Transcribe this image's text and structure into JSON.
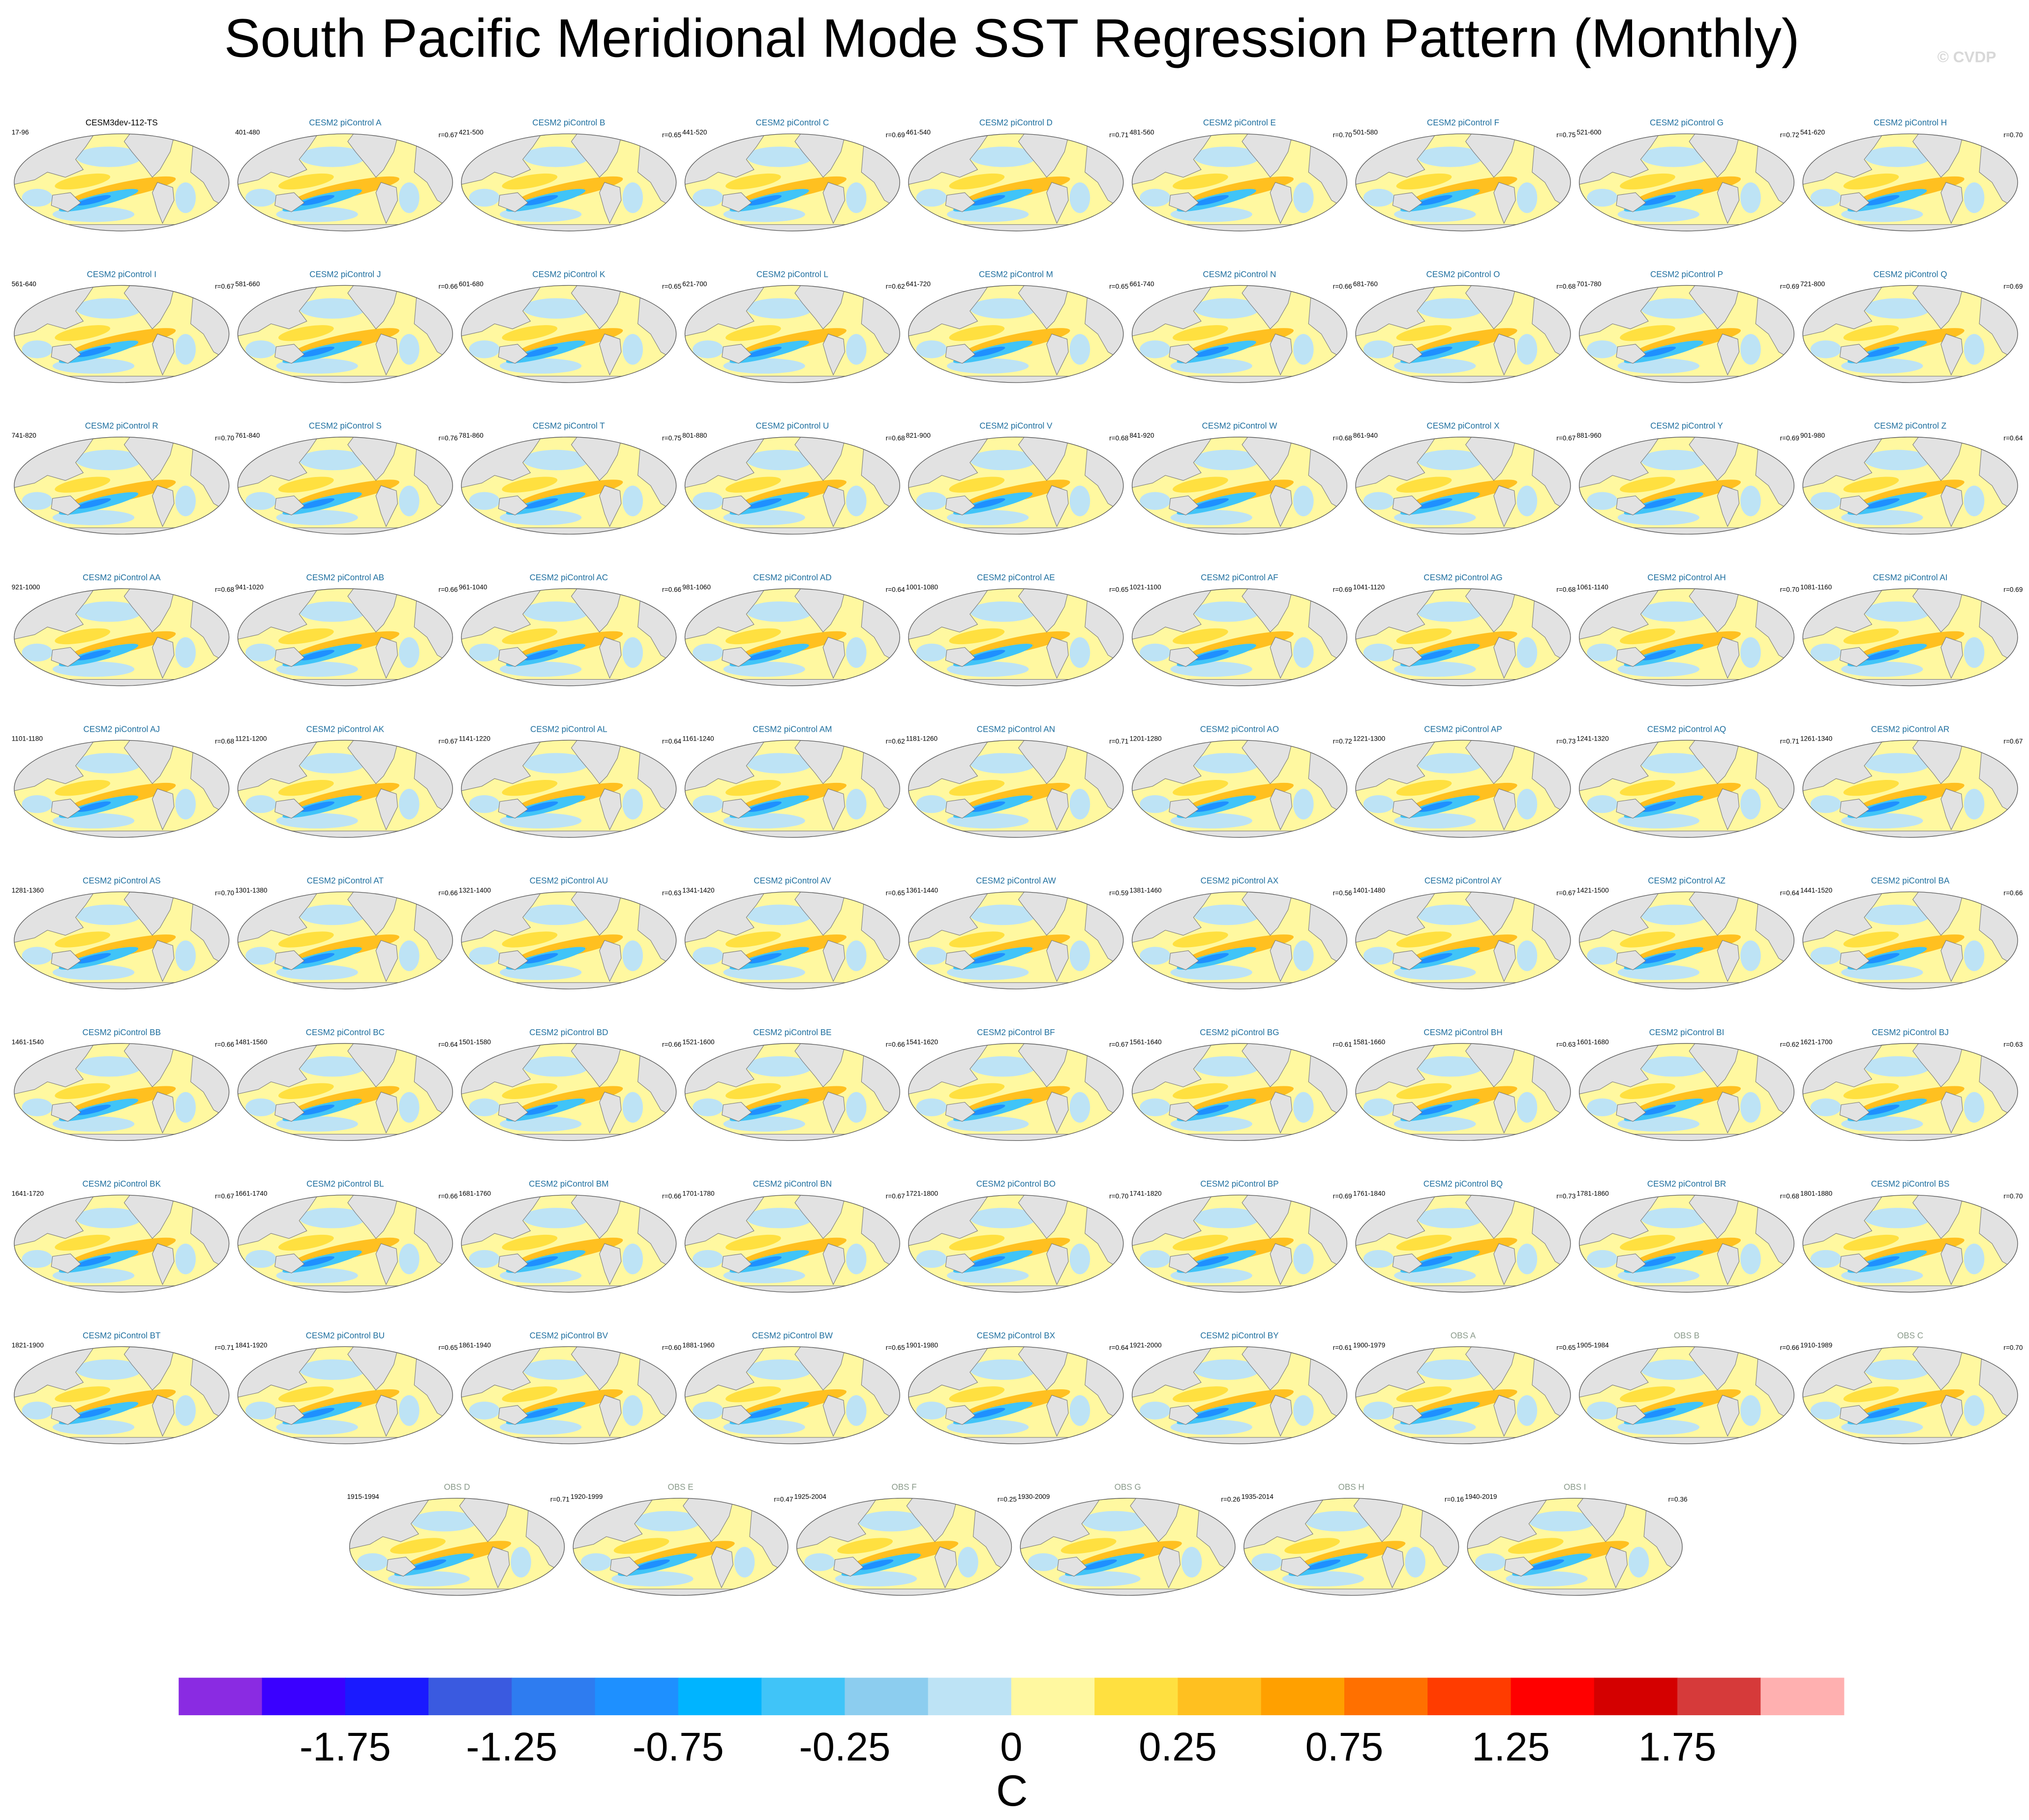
{
  "chart_data": {
    "type": "map",
    "title": "South Pacific Meridional Mode SST Regression Pattern (Monthly)",
    "watermark": "© CVDP",
    "panels": [
      {
        "title": "CESM3dev-112-TS",
        "period": "17-96",
        "group": "model"
      },
      {
        "title": "CESM2 piControl A",
        "period": "401-480",
        "r": "r=0.67",
        "group": "ensemble"
      },
      {
        "title": "CESM2 piControl B",
        "period": "421-500",
        "r": "r=0.65",
        "group": "ensemble"
      },
      {
        "title": "CESM2 piControl C",
        "period": "441-520",
        "r": "r=0.69",
        "group": "ensemble"
      },
      {
        "title": "CESM2 piControl D",
        "period": "461-540",
        "r": "r=0.71",
        "group": "ensemble"
      },
      {
        "title": "CESM2 piControl E",
        "period": "481-560",
        "r": "r=0.70",
        "group": "ensemble"
      },
      {
        "title": "CESM2 piControl F",
        "period": "501-580",
        "r": "r=0.75",
        "group": "ensemble"
      },
      {
        "title": "CESM2 piControl G",
        "period": "521-600",
        "r": "r=0.72",
        "group": "ensemble"
      },
      {
        "title": "CESM2 piControl H",
        "period": "541-620",
        "r": "r=0.70",
        "group": "ensemble"
      },
      {
        "title": "CESM2 piControl I",
        "period": "561-640",
        "r": "r=0.67",
        "group": "ensemble"
      },
      {
        "title": "CESM2 piControl J",
        "period": "581-660",
        "r": "r=0.66",
        "group": "ensemble"
      },
      {
        "title": "CESM2 piControl K",
        "period": "601-680",
        "r": "r=0.65",
        "group": "ensemble"
      },
      {
        "title": "CESM2 piControl L",
        "period": "621-700",
        "r": "r=0.62",
        "group": "ensemble"
      },
      {
        "title": "CESM2 piControl M",
        "period": "641-720",
        "r": "r=0.65",
        "group": "ensemble"
      },
      {
        "title": "CESM2 piControl N",
        "period": "661-740",
        "r": "r=0.66",
        "group": "ensemble"
      },
      {
        "title": "CESM2 piControl O",
        "period": "681-760",
        "r": "r=0.68",
        "group": "ensemble"
      },
      {
        "title": "CESM2 piControl P",
        "period": "701-780",
        "r": "r=0.69",
        "group": "ensemble"
      },
      {
        "title": "CESM2 piControl Q",
        "period": "721-800",
        "r": "r=0.69",
        "group": "ensemble"
      },
      {
        "title": "CESM2 piControl R",
        "period": "741-820",
        "r": "r=0.70",
        "group": "ensemble"
      },
      {
        "title": "CESM2 piControl S",
        "period": "761-840",
        "r": "r=0.76",
        "group": "ensemble"
      },
      {
        "title": "CESM2 piControl T",
        "period": "781-860",
        "r": "r=0.75",
        "group": "ensemble"
      },
      {
        "title": "CESM2 piControl U",
        "period": "801-880",
        "r": "r=0.68",
        "group": "ensemble"
      },
      {
        "title": "CESM2 piControl V",
        "period": "821-900",
        "r": "r=0.68",
        "group": "ensemble"
      },
      {
        "title": "CESM2 piControl W",
        "period": "841-920",
        "r": "r=0.68",
        "group": "ensemble"
      },
      {
        "title": "CESM2 piControl X",
        "period": "861-940",
        "r": "r=0.67",
        "group": "ensemble"
      },
      {
        "title": "CESM2 piControl Y",
        "period": "881-960",
        "r": "r=0.69",
        "group": "ensemble"
      },
      {
        "title": "CESM2 piControl Z",
        "period": "901-980",
        "r": "r=0.64",
        "group": "ensemble"
      },
      {
        "title": "CESM2 piControl AA",
        "period": "921-1000",
        "r": "r=0.68",
        "group": "ensemble"
      },
      {
        "title": "CESM2 piControl AB",
        "period": "941-1020",
        "r": "r=0.66",
        "group": "ensemble"
      },
      {
        "title": "CESM2 piControl AC",
        "period": "961-1040",
        "r": "r=0.66",
        "group": "ensemble"
      },
      {
        "title": "CESM2 piControl AD",
        "period": "981-1060",
        "r": "r=0.64",
        "group": "ensemble"
      },
      {
        "title": "CESM2 piControl AE",
        "period": "1001-1080",
        "r": "r=0.65",
        "group": "ensemble"
      },
      {
        "title": "CESM2 piControl AF",
        "period": "1021-1100",
        "r": "r=0.69",
        "group": "ensemble"
      },
      {
        "title": "CESM2 piControl AG",
        "period": "1041-1120",
        "r": "r=0.68",
        "group": "ensemble"
      },
      {
        "title": "CESM2 piControl AH",
        "period": "1061-1140",
        "r": "r=0.70",
        "group": "ensemble"
      },
      {
        "title": "CESM2 piControl AI",
        "period": "1081-1160",
        "r": "r=0.69",
        "group": "ensemble"
      },
      {
        "title": "CESM2 piControl AJ",
        "period": "1101-1180",
        "r": "r=0.68",
        "group": "ensemble"
      },
      {
        "title": "CESM2 piControl AK",
        "period": "1121-1200",
        "r": "r=0.67",
        "group": "ensemble"
      },
      {
        "title": "CESM2 piControl AL",
        "period": "1141-1220",
        "r": "r=0.64",
        "group": "ensemble"
      },
      {
        "title": "CESM2 piControl AM",
        "period": "1161-1240",
        "r": "r=0.62",
        "group": "ensemble"
      },
      {
        "title": "CESM2 piControl AN",
        "period": "1181-1260",
        "r": "r=0.71",
        "group": "ensemble"
      },
      {
        "title": "CESM2 piControl AO",
        "period": "1201-1280",
        "r": "r=0.72",
        "group": "ensemble"
      },
      {
        "title": "CESM2 piControl AP",
        "period": "1221-1300",
        "r": "r=0.73",
        "group": "ensemble"
      },
      {
        "title": "CESM2 piControl AQ",
        "period": "1241-1320",
        "r": "r=0.71",
        "group": "ensemble"
      },
      {
        "title": "CESM2 piControl AR",
        "period": "1261-1340",
        "r": "r=0.67",
        "group": "ensemble"
      },
      {
        "title": "CESM2 piControl AS",
        "period": "1281-1360",
        "r": "r=0.70",
        "group": "ensemble"
      },
      {
        "title": "CESM2 piControl AT",
        "period": "1301-1380",
        "r": "r=0.66",
        "group": "ensemble"
      },
      {
        "title": "CESM2 piControl AU",
        "period": "1321-1400",
        "r": "r=0.63",
        "group": "ensemble"
      },
      {
        "title": "CESM2 piControl AV",
        "period": "1341-1420",
        "r": "r=0.65",
        "group": "ensemble"
      },
      {
        "title": "CESM2 piControl AW",
        "period": "1361-1440",
        "r": "r=0.59",
        "group": "ensemble"
      },
      {
        "title": "CESM2 piControl AX",
        "period": "1381-1460",
        "r": "r=0.56",
        "group": "ensemble"
      },
      {
        "title": "CESM2 piControl AY",
        "period": "1401-1480",
        "r": "r=0.67",
        "group": "ensemble"
      },
      {
        "title": "CESM2 piControl AZ",
        "period": "1421-1500",
        "r": "r=0.64",
        "group": "ensemble"
      },
      {
        "title": "CESM2 piControl BA",
        "period": "1441-1520",
        "r": "r=0.66",
        "group": "ensemble"
      },
      {
        "title": "CESM2 piControl BB",
        "period": "1461-1540",
        "r": "r=0.66",
        "group": "ensemble"
      },
      {
        "title": "CESM2 piControl BC",
        "period": "1481-1560",
        "r": "r=0.64",
        "group": "ensemble"
      },
      {
        "title": "CESM2 piControl BD",
        "period": "1501-1580",
        "r": "r=0.66",
        "group": "ensemble"
      },
      {
        "title": "CESM2 piControl BE",
        "period": "1521-1600",
        "r": "r=0.66",
        "group": "ensemble"
      },
      {
        "title": "CESM2 piControl BF",
        "period": "1541-1620",
        "r": "r=0.67",
        "group": "ensemble"
      },
      {
        "title": "CESM2 piControl BG",
        "period": "1561-1640",
        "r": "r=0.61",
        "group": "ensemble"
      },
      {
        "title": "CESM2 piControl BH",
        "period": "1581-1660",
        "r": "r=0.63",
        "group": "ensemble"
      },
      {
        "title": "CESM2 piControl BI",
        "period": "1601-1680",
        "r": "r=0.62",
        "group": "ensemble"
      },
      {
        "title": "CESM2 piControl BJ",
        "period": "1621-1700",
        "r": "r=0.63",
        "group": "ensemble"
      },
      {
        "title": "CESM2 piControl BK",
        "period": "1641-1720",
        "r": "r=0.67",
        "group": "ensemble"
      },
      {
        "title": "CESM2 piControl BL",
        "period": "1661-1740",
        "r": "r=0.66",
        "group": "ensemble"
      },
      {
        "title": "CESM2 piControl BM",
        "period": "1681-1760",
        "r": "r=0.66",
        "group": "ensemble"
      },
      {
        "title": "CESM2 piControl BN",
        "period": "1701-1780",
        "r": "r=0.67",
        "group": "ensemble"
      },
      {
        "title": "CESM2 piControl BO",
        "period": "1721-1800",
        "r": "r=0.70",
        "group": "ensemble"
      },
      {
        "title": "CESM2 piControl BP",
        "period": "1741-1820",
        "r": "r=0.69",
        "group": "ensemble"
      },
      {
        "title": "CESM2 piControl BQ",
        "period": "1761-1840",
        "r": "r=0.73",
        "group": "ensemble"
      },
      {
        "title": "CESM2 piControl BR",
        "period": "1781-1860",
        "r": "r=0.68",
        "group": "ensemble"
      },
      {
        "title": "CESM2 piControl BS",
        "period": "1801-1880",
        "r": "r=0.70",
        "group": "ensemble"
      },
      {
        "title": "CESM2 piControl BT",
        "period": "1821-1900",
        "r": "r=0.71",
        "group": "ensemble"
      },
      {
        "title": "CESM2 piControl BU",
        "period": "1841-1920",
        "r": "r=0.65",
        "group": "ensemble"
      },
      {
        "title": "CESM2 piControl BV",
        "period": "1861-1940",
        "r": "r=0.60",
        "group": "ensemble"
      },
      {
        "title": "CESM2 piControl BW",
        "period": "1881-1960",
        "r": "r=0.65",
        "group": "ensemble"
      },
      {
        "title": "CESM2 piControl BX",
        "period": "1901-1980",
        "r": "r=0.64",
        "group": "ensemble"
      },
      {
        "title": "CESM2 piControl BY",
        "period": "1921-2000",
        "r": "r=0.61",
        "group": "ensemble"
      },
      {
        "title": "OBS A",
        "period": "1900-1979",
        "r": "r=0.65",
        "group": "obs"
      },
      {
        "title": "OBS B",
        "period": "1905-1984",
        "r": "r=0.66",
        "group": "obs"
      },
      {
        "title": "OBS C",
        "period": "1910-1989",
        "r": "r=0.70",
        "group": "obs"
      },
      {
        "title": "OBS D",
        "period": "1915-1994",
        "r": "r=0.71",
        "group": "obs"
      },
      {
        "title": "OBS E",
        "period": "1920-1999",
        "r": "r=0.47",
        "group": "obs"
      },
      {
        "title": "OBS F",
        "period": "1925-2004",
        "r": "r=0.25",
        "group": "obs"
      },
      {
        "title": "OBS G",
        "period": "1930-2009",
        "r": "r=0.26",
        "group": "obs"
      },
      {
        "title": "OBS H",
        "period": "1935-2014",
        "r": "r=0.16",
        "group": "obs"
      },
      {
        "title": "OBS I",
        "period": "1940-2019",
        "r": "r=0.36",
        "group": "obs"
      }
    ],
    "title_colors": {
      "model": "#000000",
      "ensemble": "#1f6f9f",
      "obs": "#8a9a8a"
    },
    "colorbar": {
      "label": "C",
      "colors": [
        "#8a2be2",
        "#3a00ff",
        "#1a1aff",
        "#3a5ae0",
        "#2e7cf0",
        "#1e90ff",
        "#00b4ff",
        "#40c4f8",
        "#8ccdef",
        "#bde3f5",
        "#fff8a0",
        "#ffe040",
        "#ffc020",
        "#ffa000",
        "#ff7000",
        "#ff3c00",
        "#ff0000",
        "#d40000",
        "#d63a3a",
        "#ffb0b0"
      ],
      "ticks": [
        -1.75,
        -1.25,
        -0.75,
        -0.25,
        0,
        0.25,
        0.75,
        1.25,
        1.75
      ]
    }
  }
}
